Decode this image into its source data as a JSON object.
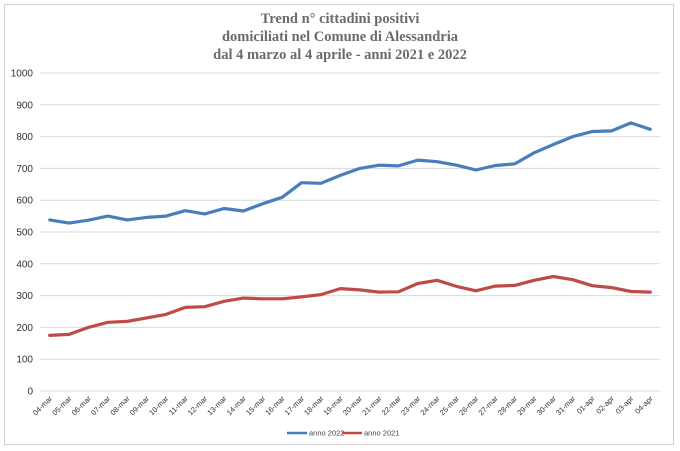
{
  "chart_data": {
    "type": "line",
    "title": [
      "Trend n° cittadini positivi",
      "domiciliati nel Comune di Alessandria",
      "dal 4 marzo al 4 aprile - anni 2021 e 2022"
    ],
    "xlabel": "",
    "ylabel": "",
    "ylim": [
      0,
      1000
    ],
    "yticks": [
      "0",
      "100",
      "200",
      "300",
      "400",
      "500",
      "600",
      "700",
      "800",
      "900",
      "1000"
    ],
    "grid": true,
    "legend_position": "bottom",
    "categories": [
      "04-mar",
      "05-mar",
      "06-mar",
      "07-mar",
      "08-mar",
      "09-mar",
      "10-mar",
      "11-mar",
      "12-mar",
      "13-mar",
      "14-mar",
      "15-mar",
      "16-mar",
      "17-mar",
      "18-mar",
      "19-mar",
      "20-mar",
      "21-mar",
      "22-mar",
      "23-mar",
      "24-mar",
      "25-mar",
      "26-mar",
      "27-mar",
      "28-mar",
      "29-mar",
      "30-mar",
      "31-mar",
      "01-apr",
      "02-apr",
      "03-apr",
      "04-apr"
    ],
    "series": [
      {
        "name": "anno 2022",
        "color": "#4a7ebb",
        "values": [
          538,
          528,
          537,
          550,
          538,
          546,
          550,
          567,
          557,
          574,
          566,
          589,
          609,
          655,
          653,
          678,
          700,
          710,
          708,
          726,
          721,
          710,
          695,
          709,
          714,
          749,
          775,
          800,
          816,
          818,
          843,
          823
        ]
      },
      {
        "name": "anno 2021",
        "color": "#be4b48",
        "values": [
          175,
          178,
          200,
          216,
          219,
          230,
          241,
          263,
          265,
          282,
          292,
          290,
          290,
          296,
          303,
          322,
          318,
          311,
          312,
          338,
          348,
          329,
          315,
          330,
          332,
          348,
          360,
          350,
          331,
          325,
          313,
          311
        ]
      }
    ]
  }
}
